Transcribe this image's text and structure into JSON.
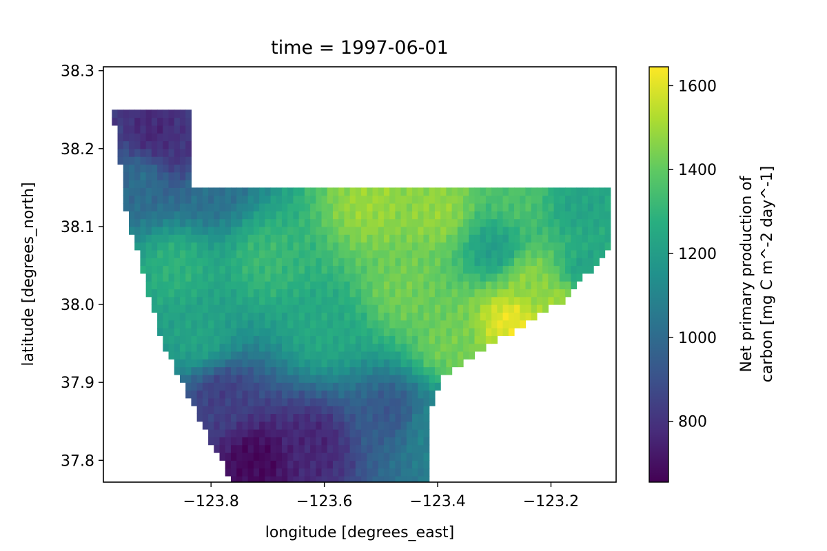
{
  "chart_data": {
    "type": "heatmap",
    "title": "time = 1997-06-01",
    "xlabel": "longitude [degrees_east]",
    "ylabel": "latitude [degrees_north]",
    "xlim": [
      -123.99,
      -123.085
    ],
    "ylim": [
      37.772,
      38.305
    ],
    "xticks": [
      -123.8,
      -123.6,
      -123.4,
      -123.2
    ],
    "xtick_labels": [
      "−123.8",
      "−123.6",
      "−123.4",
      "−123.2"
    ],
    "yticks": [
      37.8,
      37.9,
      38.0,
      38.1,
      38.2,
      38.3
    ],
    "ytick_labels": [
      "37.8",
      "37.9",
      "38.0",
      "38.1",
      "38.2",
      "38.3"
    ],
    "grid": false,
    "colormap": "viridis",
    "colorbar": {
      "label_lines": [
        "Net primary production of",
        "carbon [mg C m^-2 day^-1]"
      ],
      "range": [
        655,
        1645
      ],
      "ticks": [
        800,
        1000,
        1200,
        1400,
        1600
      ],
      "tick_labels": [
        "800",
        "1000",
        "1200",
        "1400",
        "1600"
      ],
      "position": "right"
    },
    "grid_spec": {
      "lon_start": -123.97,
      "lon_step": 0.01,
      "lat_start": 37.775,
      "lat_step": 0.01,
      "cols": 88,
      "rows": 48
    },
    "region_rows": [
      [
        37.775,
        -123.76,
        -123.42
      ],
      [
        37.825,
        -123.8,
        -123.42
      ],
      [
        37.855,
        -123.82,
        -123.42
      ],
      [
        37.875,
        -123.835,
        -123.41
      ],
      [
        37.905,
        -123.85,
        -123.395
      ],
      [
        37.935,
        -123.875,
        -123.34
      ],
      [
        37.965,
        -123.89,
        -123.27
      ],
      [
        38.005,
        -123.905,
        -123.18
      ],
      [
        38.045,
        -123.92,
        -123.13
      ],
      [
        38.085,
        -123.935,
        -123.09
      ],
      [
        38.125,
        -123.95,
        -123.09
      ],
      [
        38.165,
        -123.955,
        -123.835
      ],
      [
        38.205,
        -123.965,
        -123.835
      ],
      [
        38.245,
        -123.97,
        -123.835
      ]
    ],
    "value_anchors": [
      {
        "lon": -123.9,
        "lat": 38.22,
        "value": 760
      },
      {
        "lon": -123.86,
        "lat": 38.2,
        "value": 800
      },
      {
        "lon": -123.92,
        "lat": 38.16,
        "value": 1010
      },
      {
        "lon": -123.72,
        "lat": 37.8,
        "value": 670
      },
      {
        "lon": -123.62,
        "lat": 37.82,
        "value": 760
      },
      {
        "lon": -123.78,
        "lat": 37.88,
        "value": 840
      },
      {
        "lon": -123.48,
        "lat": 37.86,
        "value": 920
      },
      {
        "lon": -123.42,
        "lat": 37.84,
        "value": 1090
      },
      {
        "lon": -123.8,
        "lat": 38.15,
        "value": 1020
      },
      {
        "lon": -123.86,
        "lat": 38.05,
        "value": 1290
      },
      {
        "lon": -123.7,
        "lat": 38.06,
        "value": 1320
      },
      {
        "lon": -123.82,
        "lat": 37.96,
        "value": 1230
      },
      {
        "lon": -123.6,
        "lat": 37.97,
        "value": 1250
      },
      {
        "lon": -123.52,
        "lat": 38.13,
        "value": 1490
      },
      {
        "lon": -123.4,
        "lat": 38.12,
        "value": 1480
      },
      {
        "lon": -123.46,
        "lat": 38.02,
        "value": 1430
      },
      {
        "lon": -123.38,
        "lat": 37.95,
        "value": 1430
      },
      {
        "lon": -123.3,
        "lat": 38.07,
        "value": 1200
      },
      {
        "lon": -123.15,
        "lat": 38.13,
        "value": 1230
      },
      {
        "lon": -123.26,
        "lat": 38.14,
        "value": 1360
      },
      {
        "lon": -123.24,
        "lat": 38.03,
        "value": 1470
      },
      {
        "lon": -123.27,
        "lat": 37.98,
        "value": 1620
      },
      {
        "lon": -123.18,
        "lat": 38.0,
        "value": 1500
      },
      {
        "lon": -123.14,
        "lat": 38.04,
        "value": 1220
      }
    ]
  }
}
